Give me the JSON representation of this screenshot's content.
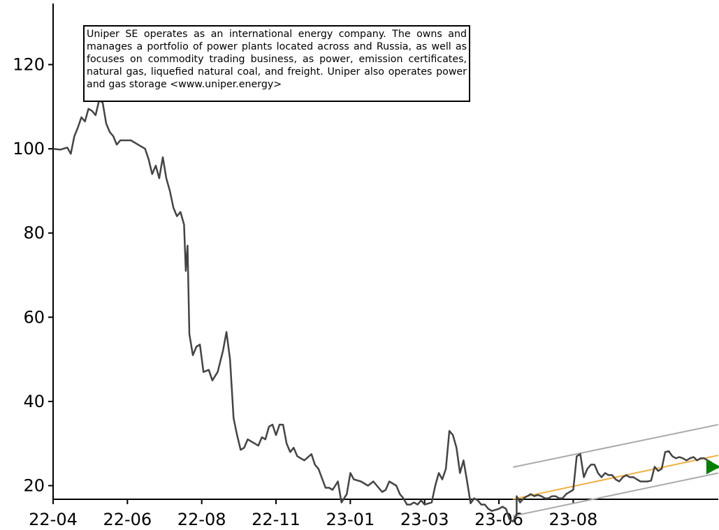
{
  "description": {
    "text": "Uniper SE operates as an international energy company. The owns and manages a portfolio of power plants located across and Russia, as well as focuses on commodity trading business, as power, emission certificates, natural gas, liquefied natural coal, and freight. Uniper also operates power and gas storage <www.uniper.energy>"
  },
  "chart_data": {
    "type": "line",
    "title": "",
    "xlabel": "",
    "ylabel": "",
    "x_tick_labels": [
      "22-04",
      "22-06",
      "22-08",
      "22-11",
      "23-01",
      "23-03",
      "23-06",
      "23-08"
    ],
    "y_ticks": [
      20,
      40,
      60,
      80,
      100,
      120
    ],
    "ylim": [
      5,
      124
    ],
    "x_range_index": [
      0,
      376
    ],
    "grid": false,
    "series": [
      {
        "color": "#444444",
        "points": [
          [
            0,
            100
          ],
          [
            4,
            99.8
          ],
          [
            8,
            100.3
          ],
          [
            10,
            98.8
          ],
          [
            12,
            103
          ],
          [
            14,
            105
          ],
          [
            16,
            107.5
          ],
          [
            18,
            106.5
          ],
          [
            20,
            109.5
          ],
          [
            22,
            109
          ],
          [
            24,
            108
          ],
          [
            26,
            111.5
          ],
          [
            28,
            111
          ],
          [
            30,
            106
          ],
          [
            32,
            104
          ],
          [
            34,
            103
          ],
          [
            36,
            101
          ],
          [
            38,
            102
          ],
          [
            44,
            102
          ],
          [
            48,
            101
          ],
          [
            50,
            100.5
          ],
          [
            52,
            100
          ],
          [
            54,
            97.5
          ],
          [
            56,
            94
          ],
          [
            58,
            96
          ],
          [
            60,
            93
          ],
          [
            62,
            98
          ],
          [
            64,
            93
          ],
          [
            66,
            90
          ],
          [
            68,
            86
          ],
          [
            70,
            84
          ],
          [
            72,
            85
          ],
          [
            74,
            82
          ],
          [
            75,
            71
          ],
          [
            76,
            77
          ],
          [
            77,
            56
          ],
          [
            79,
            51
          ],
          [
            81,
            53
          ],
          [
            83,
            53.5
          ],
          [
            85,
            47
          ],
          [
            88,
            47.5
          ],
          [
            90,
            45
          ],
          [
            93,
            47
          ],
          [
            96,
            52
          ],
          [
            98,
            56.5
          ],
          [
            100,
            50
          ],
          [
            102,
            36
          ],
          [
            104,
            32
          ],
          [
            106,
            28.5
          ],
          [
            108,
            29
          ],
          [
            110,
            31
          ],
          [
            114,
            30
          ],
          [
            116,
            29.5
          ],
          [
            118,
            31.5
          ],
          [
            120,
            31
          ],
          [
            122,
            34
          ],
          [
            124,
            34.5
          ],
          [
            126,
            32
          ],
          [
            128,
            34.5
          ],
          [
            130,
            34.5
          ],
          [
            132,
            30
          ],
          [
            134,
            28
          ],
          [
            136,
            29
          ],
          [
            138,
            27
          ],
          [
            142,
            26
          ],
          [
            146,
            27.5
          ],
          [
            148,
            25
          ],
          [
            150,
            24
          ],
          [
            154,
            19.5
          ],
          [
            156,
            19.5
          ],
          [
            158,
            19
          ],
          [
            161,
            21
          ],
          [
            163,
            16
          ],
          [
            166,
            18
          ],
          [
            168,
            23
          ],
          [
            170,
            21.5
          ],
          [
            174,
            21
          ],
          [
            178,
            20
          ],
          [
            181,
            21
          ],
          [
            186,
            18.5
          ],
          [
            188,
            19
          ],
          [
            190,
            21
          ],
          [
            194,
            20
          ],
          [
            196,
            18
          ],
          [
            198,
            17
          ],
          [
            200,
            15.5
          ],
          [
            202,
            15.5
          ],
          [
            204,
            16
          ],
          [
            206,
            15.5
          ],
          [
            208,
            16.5
          ],
          [
            210,
            15.5
          ],
          [
            214,
            16
          ],
          [
            216,
            20
          ],
          [
            218,
            23
          ],
          [
            220,
            21.5
          ],
          [
            222,
            24
          ],
          [
            224,
            33
          ],
          [
            226,
            32
          ],
          [
            228,
            29
          ],
          [
            230,
            23
          ],
          [
            232,
            26
          ],
          [
            234,
            21
          ],
          [
            236,
            15.8
          ],
          [
            238,
            17
          ],
          [
            240,
            16.5
          ],
          [
            242,
            15.5
          ],
          [
            244,
            15.5
          ],
          [
            246,
            14.5
          ],
          [
            248,
            14
          ],
          [
            252,
            14.5
          ],
          [
            254,
            15
          ],
          [
            256,
            14.5
          ],
          [
            258,
            12
          ],
          [
            260,
            11.5
          ],
          [
            262,
            13
          ],
          [
            264,
            15.5
          ],
          [
            266,
            15
          ],
          [
            268,
            13
          ],
          [
            270,
            12.5
          ],
          [
            274,
            13.5
          ],
          [
            278,
            13.2
          ],
          [
            282,
            14
          ],
          [
            286,
            13.5
          ],
          [
            290,
            13.8
          ],
          [
            294,
            13.3
          ],
          [
            298,
            13.5
          ],
          [
            302,
            13.2
          ],
          [
            306,
            13.5
          ],
          [
            310,
            13
          ],
          [
            314,
            13.5
          ],
          [
            316,
            14
          ],
          [
            318,
            14.5
          ],
          [
            320,
            17
          ],
          [
            322,
            15
          ],
          [
            324,
            14.5
          ],
          [
            326,
            15
          ],
          [
            328,
            15.5
          ],
          [
            330,
            15.5
          ],
          [
            332,
            16.5
          ],
          [
            334,
            17
          ],
          [
            336,
            18
          ],
          [
            338,
            17
          ],
          [
            342,
            17.5
          ],
          [
            344,
            16.5
          ],
          [
            346,
            15
          ],
          [
            348,
            16
          ],
          [
            350,
            16.5
          ],
          [
            354,
            17.5
          ],
          [
            356,
            18
          ],
          [
            358,
            17.5
          ],
          [
            362,
            17.5
          ],
          [
            364,
            17
          ],
          [
            366,
            17
          ],
          [
            368,
            17.5
          ],
          [
            370,
            19
          ],
          [
            372,
            19.5
          ],
          [
            374,
            18
          ],
          [
            376,
            19
          ]
        ]
      },
      {
        "color": "#444444",
        "points": [
          [
            0,
            17.5
          ],
          [
            2,
            16
          ],
          [
            4,
            17
          ],
          [
            6,
            17.5
          ],
          [
            8,
            18
          ],
          [
            10,
            17.5
          ],
          [
            12,
            17.8
          ],
          [
            14,
            17.5
          ],
          [
            16,
            17
          ],
          [
            18,
            17
          ],
          [
            20,
            17.5
          ],
          [
            22,
            17.5
          ],
          [
            24,
            17
          ],
          [
            26,
            17
          ],
          [
            28,
            18
          ],
          [
            30,
            18.5
          ],
          [
            32,
            19
          ],
          [
            34,
            27
          ],
          [
            36,
            27.5
          ],
          [
            38,
            22
          ],
          [
            40,
            24
          ],
          [
            42,
            25
          ],
          [
            44,
            25
          ],
          [
            46,
            23
          ],
          [
            48,
            22
          ],
          [
            50,
            23
          ],
          [
            52,
            22.5
          ],
          [
            54,
            22.5
          ],
          [
            56,
            21.5
          ],
          [
            58,
            21
          ],
          [
            60,
            22
          ],
          [
            62,
            22.5
          ],
          [
            64,
            22
          ],
          [
            66,
            22
          ],
          [
            68,
            21.5
          ],
          [
            70,
            21
          ],
          [
            72,
            21
          ],
          [
            74,
            21
          ],
          [
            76,
            21.2
          ],
          [
            78,
            24.5
          ],
          [
            80,
            23.5
          ],
          [
            82,
            24
          ],
          [
            84,
            28
          ],
          [
            86,
            28.2
          ],
          [
            88,
            27
          ],
          [
            90,
            26.5
          ],
          [
            92,
            26.8
          ],
          [
            94,
            26.5
          ],
          [
            96,
            26
          ],
          [
            98,
            26.5
          ],
          [
            100,
            26.8
          ],
          [
            102,
            26
          ],
          [
            104,
            26.5
          ],
          [
            106,
            26.5
          ],
          [
            108,
            26
          ],
          [
            110,
            25.5
          ],
          [
            112,
            24.5
          ],
          [
            114,
            24.2
          ]
        ]
      }
    ],
    "trend_channel": {
      "center_color": "#f0b040",
      "band_color": "#aaaaaa",
      "center": [
        [
          260,
          16.8
        ],
        [
          376,
          27.2
        ]
      ],
      "upper": [
        [
          260,
          24.4
        ],
        [
          376,
          34.5
        ]
      ],
      "lower": [
        [
          260,
          12.8
        ],
        [
          376,
          23
        ]
      ]
    },
    "marker": {
      "shape": "triangle-right",
      "color": "#008000",
      "x": 372,
      "y": 24.5
    }
  }
}
